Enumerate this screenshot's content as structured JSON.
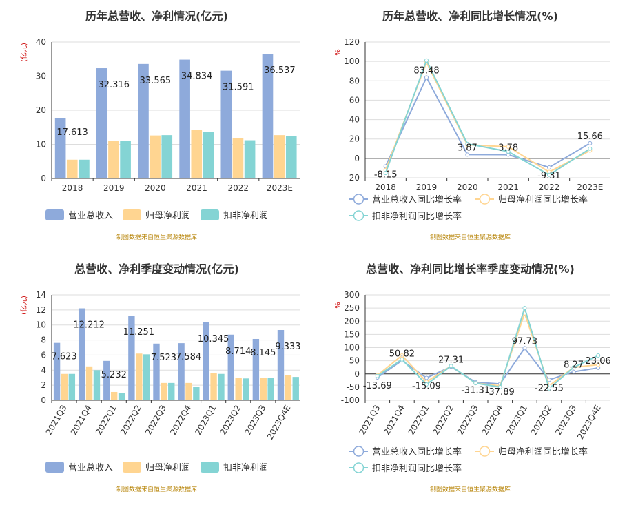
{
  "source_note": "制图数据来自恒生聚源数据库",
  "colors": {
    "revenue": "#8eaadb",
    "parent": "#ffd591",
    "deducted": "#84d4d4",
    "revenue_line": "#8eaadb",
    "parent_line": "#ffd591",
    "deducted_line": "#84d4d4",
    "axis": "#333333",
    "grid": "#dddddd",
    "unit": "#cc0000"
  },
  "chart_data": [
    {
      "id": "annual_amount",
      "type": "bar",
      "title": "历年总营收、净利情况(亿元)",
      "ylabel": "(亿元)",
      "ylim": [
        0,
        40
      ],
      "yticks": [
        0,
        10,
        20,
        30,
        40
      ],
      "categories": [
        "2018",
        "2019",
        "2020",
        "2021",
        "2022",
        "2023E"
      ],
      "series": [
        {
          "name": "营业总收入",
          "values": [
            17.613,
            32.316,
            33.565,
            34.834,
            31.591,
            36.537
          ],
          "labels": [
            "17.613",
            "32.316",
            "33.565",
            "34.834",
            "31.591",
            "36.537"
          ]
        },
        {
          "name": "归母净利润",
          "values": [
            5.5,
            11.1,
            12.6,
            14.2,
            11.8,
            12.7
          ]
        },
        {
          "name": "扣非净利润",
          "values": [
            5.5,
            11.1,
            12.7,
            13.6,
            11.2,
            12.4
          ]
        }
      ],
      "legend_position": "bottom"
    },
    {
      "id": "annual_growth",
      "type": "line",
      "title": "历年总营收、净利同比增长情况(%)",
      "ylabel": "%",
      "ylim": [
        -20,
        120
      ],
      "yticks": [
        -20,
        0,
        20,
        40,
        60,
        80,
        100,
        120
      ],
      "categories": [
        "2018",
        "2019",
        "2020",
        "2021",
        "2022",
        "2023E"
      ],
      "series": [
        {
          "name": "营业总收入同比增长率",
          "values": [
            -8.15,
            83.48,
            3.87,
            3.78,
            -9.31,
            15.66
          ],
          "labels": [
            "-8.15",
            "83.48",
            "3.87",
            "3.78",
            "-9.31",
            "15.66"
          ]
        },
        {
          "name": "归母净利润同比增长率",
          "values": [
            -12,
            99,
            14,
            12,
            -14,
            8
          ]
        },
        {
          "name": "扣非净利润同比增长率",
          "values": [
            -15,
            101,
            15,
            7,
            -17,
            10
          ]
        }
      ],
      "legend_position": "bottom"
    },
    {
      "id": "quarterly_amount",
      "type": "bar",
      "title": "总营收、净利季度变动情况(亿元)",
      "ylabel": "(亿元)",
      "ylim": [
        0,
        14
      ],
      "yticks": [
        0,
        2,
        4,
        6,
        8,
        10,
        12,
        14
      ],
      "categories": [
        "2021Q3",
        "2021Q4",
        "2022Q1",
        "2022Q2",
        "2022Q3",
        "2022Q4",
        "2023Q1",
        "2023Q2",
        "2023Q3",
        "2023Q4E"
      ],
      "series": [
        {
          "name": "营业总收入",
          "values": [
            7.623,
            12.212,
            5.232,
            11.251,
            7.523,
            7.584,
            10.345,
            8.714,
            8.145,
            9.333
          ],
          "labels": [
            "7.623",
            "12.212",
            "5.232",
            "11.251",
            "7.523",
            "7.584",
            "10.345",
            "8.714",
            "8.145",
            "9.333"
          ]
        },
        {
          "name": "归母净利润",
          "values": [
            3.5,
            4.5,
            1.1,
            6.2,
            2.3,
            2.3,
            3.6,
            3.0,
            3.0,
            3.3
          ]
        },
        {
          "name": "扣非净利润",
          "values": [
            3.5,
            4.0,
            1.0,
            6.1,
            2.3,
            1.8,
            3.5,
            2.9,
            3.0,
            3.1
          ]
        }
      ],
      "legend_position": "bottom"
    },
    {
      "id": "quarterly_growth",
      "type": "line",
      "title": "总营收、净利同比增长率季度变动情况(%)",
      "ylabel": "%",
      "ylim": [
        -100,
        300
      ],
      "yticks": [
        -100,
        -50,
        0,
        50,
        100,
        150,
        200,
        250,
        300
      ],
      "categories": [
        "2021Q3",
        "2021Q4",
        "2022Q1",
        "2022Q2",
        "2022Q3",
        "2022Q4",
        "2023Q1",
        "2023Q2",
        "2023Q3",
        "2023Q4E"
      ],
      "series": [
        {
          "name": "营业总收入同比增长率",
          "values": [
            -13.69,
            50.82,
            -15.09,
            27.31,
            -31.31,
            -37.89,
            97.73,
            -22.55,
            8.27,
            23.06
          ],
          "labels": [
            "-13.69",
            "50.82",
            "-15.09",
            "27.31",
            "-31.31",
            "-37.89",
            "97.73",
            "-22.55",
            "8.27",
            "23.06"
          ]
        },
        {
          "name": "归母净利润同比增长率",
          "values": [
            -5,
            70,
            -30,
            30,
            -35,
            -45,
            230,
            -45,
            25,
            35
          ]
        },
        {
          "name": "扣非净利润同比增长率",
          "values": [
            -8,
            55,
            -40,
            30,
            -35,
            -50,
            250,
            -55,
            25,
            70
          ]
        }
      ],
      "legend_position": "bottom"
    }
  ]
}
